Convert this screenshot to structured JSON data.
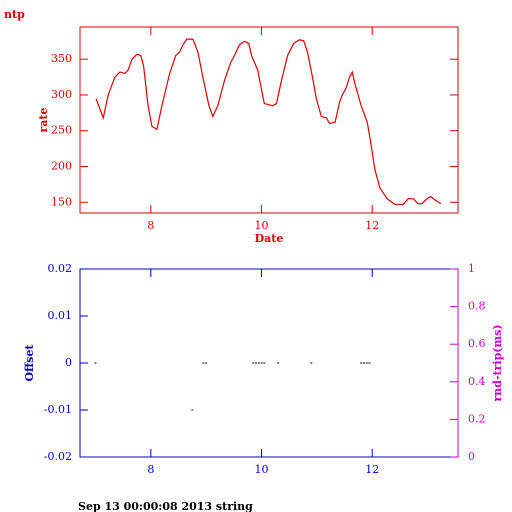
{
  "chart_data": [
    {
      "type": "line",
      "title": "ntp",
      "xlabel": "Date",
      "ylabel": "rate",
      "color": "#dd0000",
      "x": [
        7.01,
        7.14,
        7.23,
        7.35,
        7.44,
        7.53,
        7.59,
        7.66,
        7.75,
        7.82,
        7.87,
        7.95,
        8.02,
        8.11,
        8.2,
        8.34,
        8.45,
        8.52,
        8.58,
        8.65,
        8.76,
        8.85,
        8.94,
        9.05,
        9.12,
        9.21,
        9.33,
        9.44,
        9.51,
        9.6,
        9.69,
        9.77,
        9.82,
        9.93,
        10.05,
        10.2,
        10.27,
        10.36,
        10.47,
        10.58,
        10.68,
        10.76,
        10.83,
        10.92,
        10.99,
        11.08,
        11.17,
        11.23,
        11.33,
        11.41,
        11.46,
        11.53,
        11.59,
        11.64,
        11.69,
        11.8,
        11.91,
        11.98,
        12.05,
        12.14,
        12.27,
        12.41,
        12.56,
        12.65,
        12.74,
        12.83,
        12.9,
        12.99,
        13.06,
        13.14,
        13.24
      ],
      "values": [
        295,
        268,
        300,
        325,
        332,
        330,
        335,
        350,
        357,
        355,
        340,
        285,
        256,
        252,
        285,
        330,
        355,
        360,
        370,
        378,
        378,
        360,
        325,
        285,
        270,
        285,
        320,
        345,
        355,
        370,
        375,
        372,
        355,
        335,
        288,
        285,
        288,
        320,
        355,
        372,
        377,
        376,
        360,
        325,
        295,
        270,
        268,
        260,
        262,
        290,
        300,
        310,
        325,
        332,
        315,
        285,
        262,
        230,
        195,
        170,
        155,
        147,
        147,
        155,
        155,
        148,
        148,
        155,
        158,
        153,
        148
      ],
      "xlim": [
        6.72,
        13.55
      ],
      "xticks": [
        8,
        10,
        12
      ],
      "ylim": [
        135,
        395
      ],
      "yticks": [
        150,
        200,
        250,
        300,
        350
      ]
    },
    {
      "type": "scatter",
      "ylabel": "Offset",
      "y2label": "rnd-trip(ms)",
      "color": "#0000cc",
      "y2color": "#cc00cc",
      "x": [
        7.0,
        8.75,
        8.95,
        9.0,
        9.85,
        9.9,
        9.95,
        10.0,
        10.05,
        10.3,
        10.9,
        11.8,
        11.85,
        11.9,
        11.95
      ],
      "values": [
        0,
        -0.01,
        0,
        0,
        0,
        0,
        0,
        0,
        0,
        0,
        0,
        0,
        0,
        0,
        0
      ],
      "xlim": [
        6.72,
        13.55
      ],
      "xticks": [
        8,
        10,
        12
      ],
      "ylim": [
        -0.02,
        0.02
      ],
      "yticks": [
        -0.02,
        -0.01,
        0,
        0.01,
        0.02
      ],
      "y2lim": [
        0,
        1
      ],
      "y2ticks": [
        0,
        0.2,
        0.4,
        0.6,
        0.8,
        1
      ]
    }
  ],
  "footer": "Sep 13 00:00:08 2013 string"
}
